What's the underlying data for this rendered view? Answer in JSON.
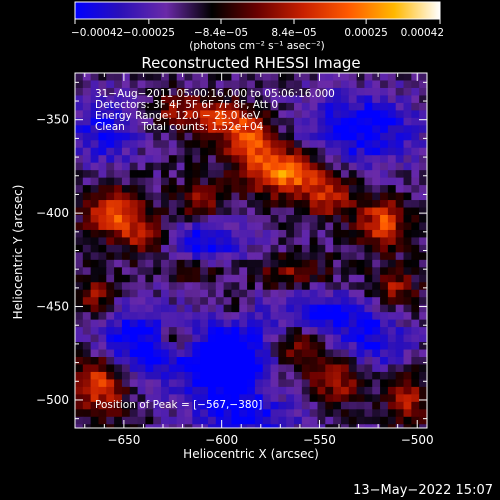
{
  "chart_data": {
    "type": "heatmap",
    "title": "Reconstructed RHESSI Image",
    "xlabel": "Heliocentric X (arcsec)",
    "ylabel": "Heliocentric Y (arcsec)",
    "xlim": [
      -675,
      -495
    ],
    "ylim": [
      -515,
      -325
    ],
    "x_ticks": [
      -650,
      -600,
      -550,
      -500
    ],
    "x_tick_labels": [
      "−650",
      "−600",
      "−550",
      "−500"
    ],
    "y_ticks": [
      -350,
      -400,
      -450,
      -500
    ],
    "y_tick_labels": [
      "−350",
      "−400",
      "−450",
      "−500"
    ],
    "colorbar": {
      "min": -0.00042,
      "max": 0.00042,
      "ticks": [
        -0.00042,
        -0.00025,
        -8.4e-05,
        8.4e-05,
        0.00025,
        0.00042
      ],
      "tick_labels": [
        "−0.00042",
        "−0.00025",
        "−8.4e−05",
        "8.4e−05",
        "0.00025",
        "0.00042"
      ],
      "unit_label": "(photons cm⁻² s⁻¹ asec⁻²)",
      "stops": [
        "#0000ff",
        "#2b10b8",
        "#6a2aa8",
        "#000000",
        "#6a0000",
        "#c82000",
        "#ff5a00",
        "#ffb800",
        "#ffffff"
      ]
    },
    "annotations": [
      "31−Aug−2011 05:00:16.000 to 05:06:16.000",
      "Detectors: 3F 4F 5F 6F 7F 8F, Att 0",
      "Energy Range: 12.0 − 25.0 keV",
      "Clean     Total counts: 1.52e+04"
    ],
    "peak_label": "Position of Peak = [−567,−380]",
    "peak": [
      -567,
      -380
    ],
    "grid": false,
    "sources": [
      {
        "x": -567,
        "y": -378,
        "sx": 14,
        "sy": 9,
        "amp": 0.00042
      },
      {
        "x": -585,
        "y": -362,
        "sx": 10,
        "sy": 8,
        "amp": 0.0003
      },
      {
        "x": -598,
        "y": -350,
        "sx": 12,
        "sy": 7,
        "amp": 0.00026
      },
      {
        "x": -622,
        "y": -345,
        "sx": 11,
        "sy": 6,
        "amp": 0.0002
      },
      {
        "x": -545,
        "y": -392,
        "sx": 9,
        "sy": 7,
        "amp": 0.00025
      },
      {
        "x": -655,
        "y": -400,
        "sx": 10,
        "sy": 9,
        "amp": 0.00033
      },
      {
        "x": -638,
        "y": -412,
        "sx": 9,
        "sy": 8,
        "amp": 0.00026
      },
      {
        "x": -610,
        "y": -395,
        "sx": 9,
        "sy": 7,
        "amp": 0.00022
      },
      {
        "x": -518,
        "y": -405,
        "sx": 8,
        "sy": 9,
        "amp": 0.00034
      },
      {
        "x": -512,
        "y": -440,
        "sx": 8,
        "sy": 7,
        "amp": 0.00022
      },
      {
        "x": -565,
        "y": -432,
        "sx": 14,
        "sy": 6,
        "amp": 0.00018
      },
      {
        "x": -615,
        "y": -430,
        "sx": 12,
        "sy": 5,
        "amp": 0.00015
      },
      {
        "x": -665,
        "y": -445,
        "sx": 7,
        "sy": 8,
        "amp": 0.0002
      },
      {
        "x": -662,
        "y": -490,
        "sx": 10,
        "sy": 12,
        "amp": 0.00035
      },
      {
        "x": -623,
        "y": -468,
        "sx": 9,
        "sy": 7,
        "amp": 0.00027
      },
      {
        "x": -560,
        "y": -470,
        "sx": 9,
        "sy": 10,
        "amp": 0.00025
      },
      {
        "x": -540,
        "y": -490,
        "sx": 10,
        "sy": 8,
        "amp": 0.00023
      },
      {
        "x": -505,
        "y": -500,
        "sx": 7,
        "sy": 9,
        "amp": 0.00025
      },
      {
        "x": -595,
        "y": -450,
        "sx": 6,
        "sy": 6,
        "amp": 0.00012
      },
      {
        "x": -642,
        "y": -470,
        "sx": 18,
        "sy": 14,
        "amp": -0.00032
      },
      {
        "x": -598,
        "y": -480,
        "sx": 16,
        "sy": 16,
        "amp": -0.00042
      },
      {
        "x": -610,
        "y": -415,
        "sx": 18,
        "sy": 10,
        "amp": -0.00024
      },
      {
        "x": -530,
        "y": -355,
        "sx": 22,
        "sy": 14,
        "amp": -0.00028
      },
      {
        "x": -660,
        "y": -355,
        "sx": 14,
        "sy": 14,
        "amp": -0.00022
      },
      {
        "x": -550,
        "y": -455,
        "sx": 20,
        "sy": 10,
        "amp": -0.00026
      },
      {
        "x": -520,
        "y": -470,
        "sx": 12,
        "sy": 10,
        "amp": -0.0002
      },
      {
        "x": -585,
        "y": -510,
        "sx": 20,
        "sy": 8,
        "amp": -0.0002
      }
    ]
  },
  "footer": {
    "timestamp": "13−May−2022 15:07"
  }
}
